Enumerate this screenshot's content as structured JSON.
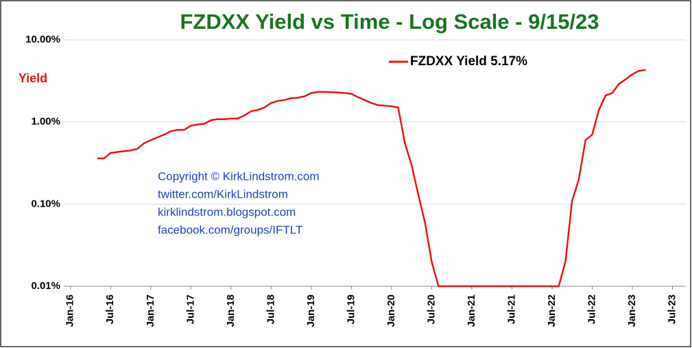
{
  "chart_data": {
    "type": "line",
    "title": "FZDXX Yield vs Time - Log Scale -  9/15/23",
    "y_label": "Yield",
    "annotations": [
      "Copyright © KirkLindstrom.com",
      "twitter.com/KirkLindstrom",
      "kirklindstrom.blogspot.com",
      "facebook.com/groups/IFTLT"
    ],
    "log_scale": true,
    "grid": true,
    "legend": "top",
    "ylim": [
      0.01,
      10
    ],
    "yticks": [
      {
        "value": 0.01,
        "label": "0.01%"
      },
      {
        "value": 0.1,
        "label": "0.10%"
      },
      {
        "value": 1,
        "label": "1.00%"
      },
      {
        "value": 10,
        "label": "10.00%"
      }
    ],
    "xlim": [
      "2015-12",
      "2023-09"
    ],
    "xticks": [
      {
        "value": "2016-01",
        "label": "Jan-16"
      },
      {
        "value": "2016-07",
        "label": "Jul-16"
      },
      {
        "value": "2017-01",
        "label": "Jan-17"
      },
      {
        "value": "2017-07",
        "label": "Jul-17"
      },
      {
        "value": "2018-01",
        "label": "Jan-18"
      },
      {
        "value": "2018-07",
        "label": "Jul-18"
      },
      {
        "value": "2019-01",
        "label": "Jan-19"
      },
      {
        "value": "2019-07",
        "label": "Jul-19"
      },
      {
        "value": "2020-01",
        "label": "Jan-20"
      },
      {
        "value": "2020-07",
        "label": "Jul-20"
      },
      {
        "value": "2021-01",
        "label": "Jan-21"
      },
      {
        "value": "2021-07",
        "label": "Jul-21"
      },
      {
        "value": "2022-01",
        "label": "Jan-22"
      },
      {
        "value": "2022-07",
        "label": "Jul-22"
      },
      {
        "value": "2023-01",
        "label": "Jan-23"
      },
      {
        "value": "2023-07",
        "label": "Jul-23"
      }
    ],
    "x": [
      "2016-05",
      "2016-06",
      "2016-07",
      "2016-08",
      "2016-09",
      "2016-10",
      "2016-11",
      "2016-12",
      "2017-01",
      "2017-02",
      "2017-03",
      "2017-04",
      "2017-05",
      "2017-06",
      "2017-07",
      "2017-08",
      "2017-09",
      "2017-10",
      "2017-11",
      "2017-12",
      "2018-01",
      "2018-02",
      "2018-03",
      "2018-04",
      "2018-05",
      "2018-06",
      "2018-07",
      "2018-08",
      "2018-09",
      "2018-10",
      "2018-11",
      "2018-12",
      "2019-01",
      "2019-02",
      "2019-03",
      "2019-04",
      "2019-05",
      "2019-06",
      "2019-07",
      "2019-08",
      "2019-09",
      "2019-10",
      "2019-11",
      "2019-12",
      "2020-01",
      "2020-02",
      "2020-03",
      "2020-04",
      "2020-05",
      "2020-06",
      "2020-07",
      "2020-08",
      "2020-09",
      "2020-10",
      "2020-11",
      "2020-12",
      "2021-01",
      "2021-02",
      "2021-03",
      "2021-04",
      "2021-05",
      "2021-06",
      "2021-07",
      "2021-08",
      "2021-09",
      "2021-10",
      "2021-11",
      "2021-12",
      "2022-01",
      "2022-02",
      "2022-03",
      "2022-04",
      "2022-05",
      "2022-06",
      "2022-07",
      "2022-08",
      "2022-09",
      "2022-10",
      "2022-11",
      "2022-12",
      "2023-01",
      "2023-02",
      "2023-03"
    ],
    "series": [
      {
        "name": "FZDXX Yield 5.17%",
        "color": "#ee1111",
        "values": [
          0.36,
          0.36,
          0.42,
          0.43,
          0.44,
          0.45,
          0.47,
          0.55,
          0.6,
          0.65,
          0.7,
          0.77,
          0.8,
          0.8,
          0.9,
          0.93,
          0.95,
          1.05,
          1.08,
          1.08,
          1.1,
          1.1,
          1.2,
          1.35,
          1.4,
          1.5,
          1.7,
          1.8,
          1.85,
          1.95,
          1.97,
          2.05,
          2.25,
          2.32,
          2.32,
          2.3,
          2.28,
          2.25,
          2.2,
          2.0,
          1.85,
          1.7,
          1.6,
          1.58,
          1.55,
          1.5,
          0.55,
          0.3,
          0.13,
          0.06,
          0.02,
          0.01,
          0.01,
          0.01,
          0.01,
          0.01,
          0.01,
          0.01,
          0.01,
          0.01,
          0.01,
          0.01,
          0.01,
          0.01,
          0.01,
          0.01,
          0.01,
          0.01,
          0.01,
          0.01,
          0.02,
          0.11,
          0.2,
          0.6,
          0.7,
          1.4,
          2.1,
          2.25,
          2.9,
          3.3,
          3.8,
          4.2,
          4.3
        ]
      }
    ]
  }
}
